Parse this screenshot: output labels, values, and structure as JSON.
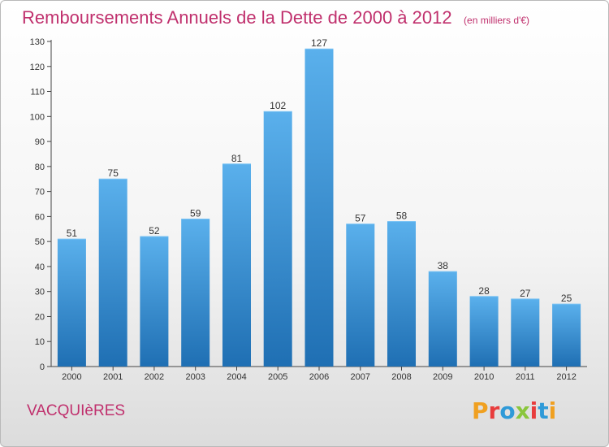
{
  "header": {
    "title": "Remboursements Annuels de la Dette de 2000 à 2012",
    "unit": "(en milliers d'€)"
  },
  "footer": {
    "commune": "VACQUIèRES",
    "logo_text": "Proxiti"
  },
  "colors": {
    "title": "#c0306d",
    "bar_top": "#5ab0ec",
    "bar_bottom": "#1f6fb3",
    "logo_letters": [
      "#f0a020",
      "#e83c3c",
      "#2f9ad8",
      "#8ac63c",
      "#e83c3c",
      "#2f9ad8",
      "#f0a020"
    ]
  },
  "chart_data": {
    "type": "bar",
    "categories": [
      "2000",
      "2001",
      "2002",
      "2003",
      "2004",
      "2005",
      "2006",
      "2007",
      "2008",
      "2009",
      "2010",
      "2011",
      "2012"
    ],
    "values": [
      51,
      75,
      52,
      59,
      81,
      102,
      127,
      57,
      58,
      38,
      28,
      27,
      25
    ],
    "title": "Remboursements Annuels de la Dette de 2000 à 2012",
    "subtitle": "(en milliers d'€)",
    "xlabel": "",
    "ylabel": "",
    "ylim": [
      0,
      130
    ],
    "yticks": [
      0,
      10,
      20,
      30,
      40,
      50,
      60,
      70,
      80,
      90,
      100,
      110,
      120,
      130
    ],
    "grid": false,
    "legend": "none"
  }
}
